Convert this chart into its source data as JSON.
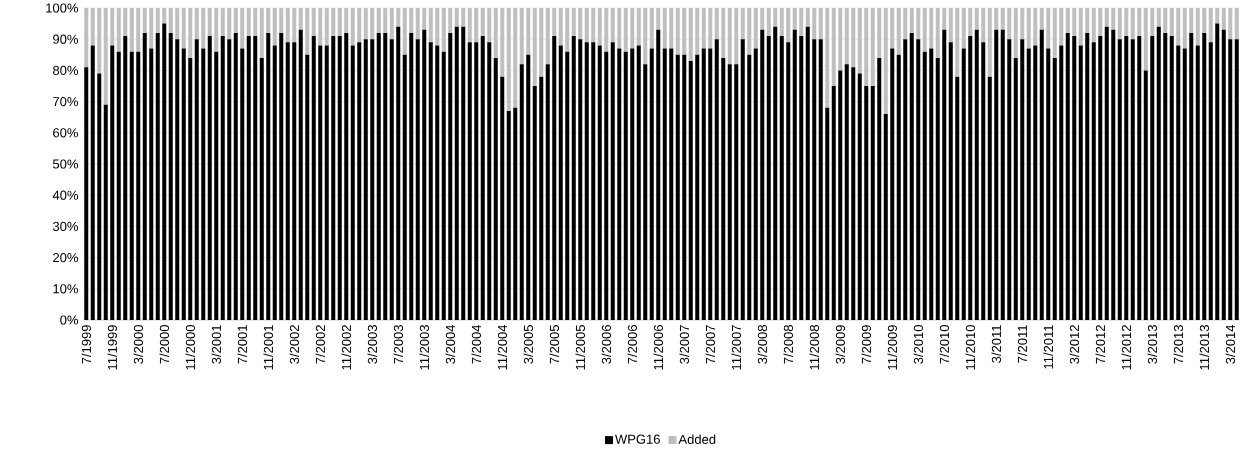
{
  "chart_data": {
    "type": "bar",
    "stacked": true,
    "categories": [
      "7/1999",
      null,
      null,
      null,
      "11/1999",
      null,
      null,
      null,
      "3/2000",
      null,
      null,
      null,
      "7/2000",
      null,
      null,
      null,
      "11/2000",
      null,
      null,
      null,
      "3/2001",
      null,
      null,
      null,
      "7/2001",
      null,
      null,
      null,
      "11/2001",
      null,
      null,
      null,
      "3/2002",
      null,
      null,
      null,
      "7/2002",
      null,
      null,
      null,
      "11/2002",
      null,
      null,
      null,
      "3/2003",
      null,
      null,
      null,
      "7/2003",
      null,
      null,
      null,
      "11/2003",
      null,
      null,
      null,
      "3/2004",
      null,
      null,
      null,
      "7/2004",
      null,
      null,
      null,
      "11/2004",
      null,
      null,
      null,
      "3/2005",
      null,
      null,
      null,
      "7/2005",
      null,
      null,
      null,
      "11/2005",
      null,
      null,
      null,
      "3/2006",
      null,
      null,
      null,
      "7/2006",
      null,
      null,
      null,
      "11/2006",
      null,
      null,
      null,
      "3/2007",
      null,
      null,
      null,
      "7/2007",
      null,
      null,
      null,
      "11/2007",
      null,
      null,
      null,
      "3/2008",
      null,
      null,
      null,
      "7/2008",
      null,
      null,
      null,
      "11/2008",
      null,
      null,
      null,
      "3/2009",
      null,
      null,
      null,
      "7/2009",
      null,
      null,
      null,
      "11/2009",
      null,
      null,
      null,
      "3/2010",
      null,
      null,
      null,
      "7/2010",
      null,
      null,
      null,
      "11/2010",
      null,
      null,
      null,
      "3/2011",
      null,
      null,
      null,
      "7/2011",
      null,
      null,
      null,
      "11/2011",
      null,
      null,
      null,
      "3/2012",
      null,
      null,
      null,
      "7/2012",
      null,
      null,
      null,
      "11/2012",
      null,
      null,
      null,
      "3/2013",
      null,
      null,
      null,
      "7/2013",
      null,
      null,
      null,
      "11/2013",
      null,
      null,
      null,
      "3/2014",
      null
    ],
    "series": [
      {
        "name": "WPG16",
        "color": "#000000",
        "values": [
          81,
          88,
          79,
          69,
          88,
          86,
          91,
          86,
          86,
          92,
          87,
          92,
          95,
          92,
          90,
          87,
          84,
          90,
          87,
          91,
          86,
          91,
          90,
          92,
          87,
          91,
          91,
          84,
          92,
          88,
          92,
          89,
          89,
          93,
          85,
          91,
          88,
          88,
          91,
          91,
          92,
          88,
          89,
          90,
          90,
          92,
          92,
          90,
          94,
          85,
          92,
          90,
          93,
          89,
          88,
          86,
          92,
          94,
          94,
          89,
          89,
          91,
          89,
          84,
          78,
          67,
          68,
          82,
          85,
          75,
          78,
          82,
          91,
          88,
          86,
          91,
          90,
          89,
          89,
          88,
          86,
          89,
          87,
          86,
          87,
          88,
          82,
          87,
          93,
          87,
          87,
          85,
          85,
          83,
          85,
          87,
          87,
          90,
          84,
          82,
          82,
          90,
          85,
          87,
          93,
          91,
          94,
          91,
          89,
          93,
          91,
          94,
          90,
          90,
          68,
          75,
          80,
          82,
          81,
          79,
          75,
          75,
          84,
          66,
          87,
          85,
          90,
          92,
          90,
          86,
          87,
          84,
          93,
          89,
          78,
          87,
          91,
          93,
          89,
          78,
          93,
          93,
          90,
          84,
          90,
          87,
          88,
          93,
          87,
          84,
          88,
          92,
          91,
          88,
          92,
          89,
          91,
          94,
          93,
          90,
          91,
          90,
          91,
          80,
          91,
          94,
          92,
          91,
          88,
          87,
          92,
          88,
          92,
          89,
          95,
          93,
          90,
          90
        ]
      },
      {
        "name": "Added",
        "color": "#bfbfbf",
        "values": [
          19,
          12,
          21,
          31,
          12,
          14,
          9,
          14,
          14,
          8,
          13,
          8,
          5,
          8,
          10,
          13,
          16,
          10,
          13,
          9,
          14,
          9,
          10,
          8,
          13,
          9,
          9,
          16,
          8,
          12,
          8,
          11,
          11,
          7,
          15,
          9,
          12,
          12,
          9,
          9,
          8,
          12,
          11,
          10,
          10,
          8,
          8,
          10,
          6,
          15,
          8,
          10,
          7,
          11,
          12,
          14,
          8,
          6,
          6,
          11,
          11,
          9,
          11,
          16,
          22,
          33,
          32,
          18,
          15,
          25,
          22,
          18,
          9,
          12,
          14,
          9,
          10,
          11,
          11,
          12,
          14,
          11,
          13,
          14,
          13,
          12,
          18,
          13,
          7,
          13,
          13,
          15,
          15,
          17,
          15,
          13,
          13,
          10,
          16,
          18,
          18,
          10,
          15,
          13,
          7,
          9,
          6,
          9,
          11,
          7,
          9,
          6,
          10,
          10,
          32,
          25,
          20,
          18,
          19,
          21,
          25,
          25,
          16,
          34,
          13,
          15,
          10,
          8,
          10,
          14,
          13,
          16,
          7,
          11,
          22,
          13,
          9,
          7,
          11,
          22,
          7,
          7,
          10,
          16,
          10,
          13,
          12,
          7,
          13,
          16,
          12,
          8,
          9,
          12,
          8,
          11,
          9,
          6,
          7,
          10,
          9,
          10,
          9,
          20,
          9,
          6,
          8,
          9,
          12,
          13,
          8,
          12,
          8,
          11,
          5,
          7,
          10,
          10
        ]
      }
    ],
    "ylim": [
      0,
      100
    ],
    "yticks": [
      {
        "value": 0,
        "label": "0%"
      },
      {
        "value": 10,
        "label": "10%"
      },
      {
        "value": 20,
        "label": "20%"
      },
      {
        "value": 30,
        "label": "30%"
      },
      {
        "value": 40,
        "label": "40%"
      },
      {
        "value": 50,
        "label": "50%"
      },
      {
        "value": 60,
        "label": "60%"
      },
      {
        "value": 70,
        "label": "70%"
      },
      {
        "value": 80,
        "label": "80%"
      },
      {
        "value": 90,
        "label": "90%"
      },
      {
        "value": 100,
        "label": "100%"
      }
    ],
    "grid": "y",
    "legend": "bottom"
  }
}
